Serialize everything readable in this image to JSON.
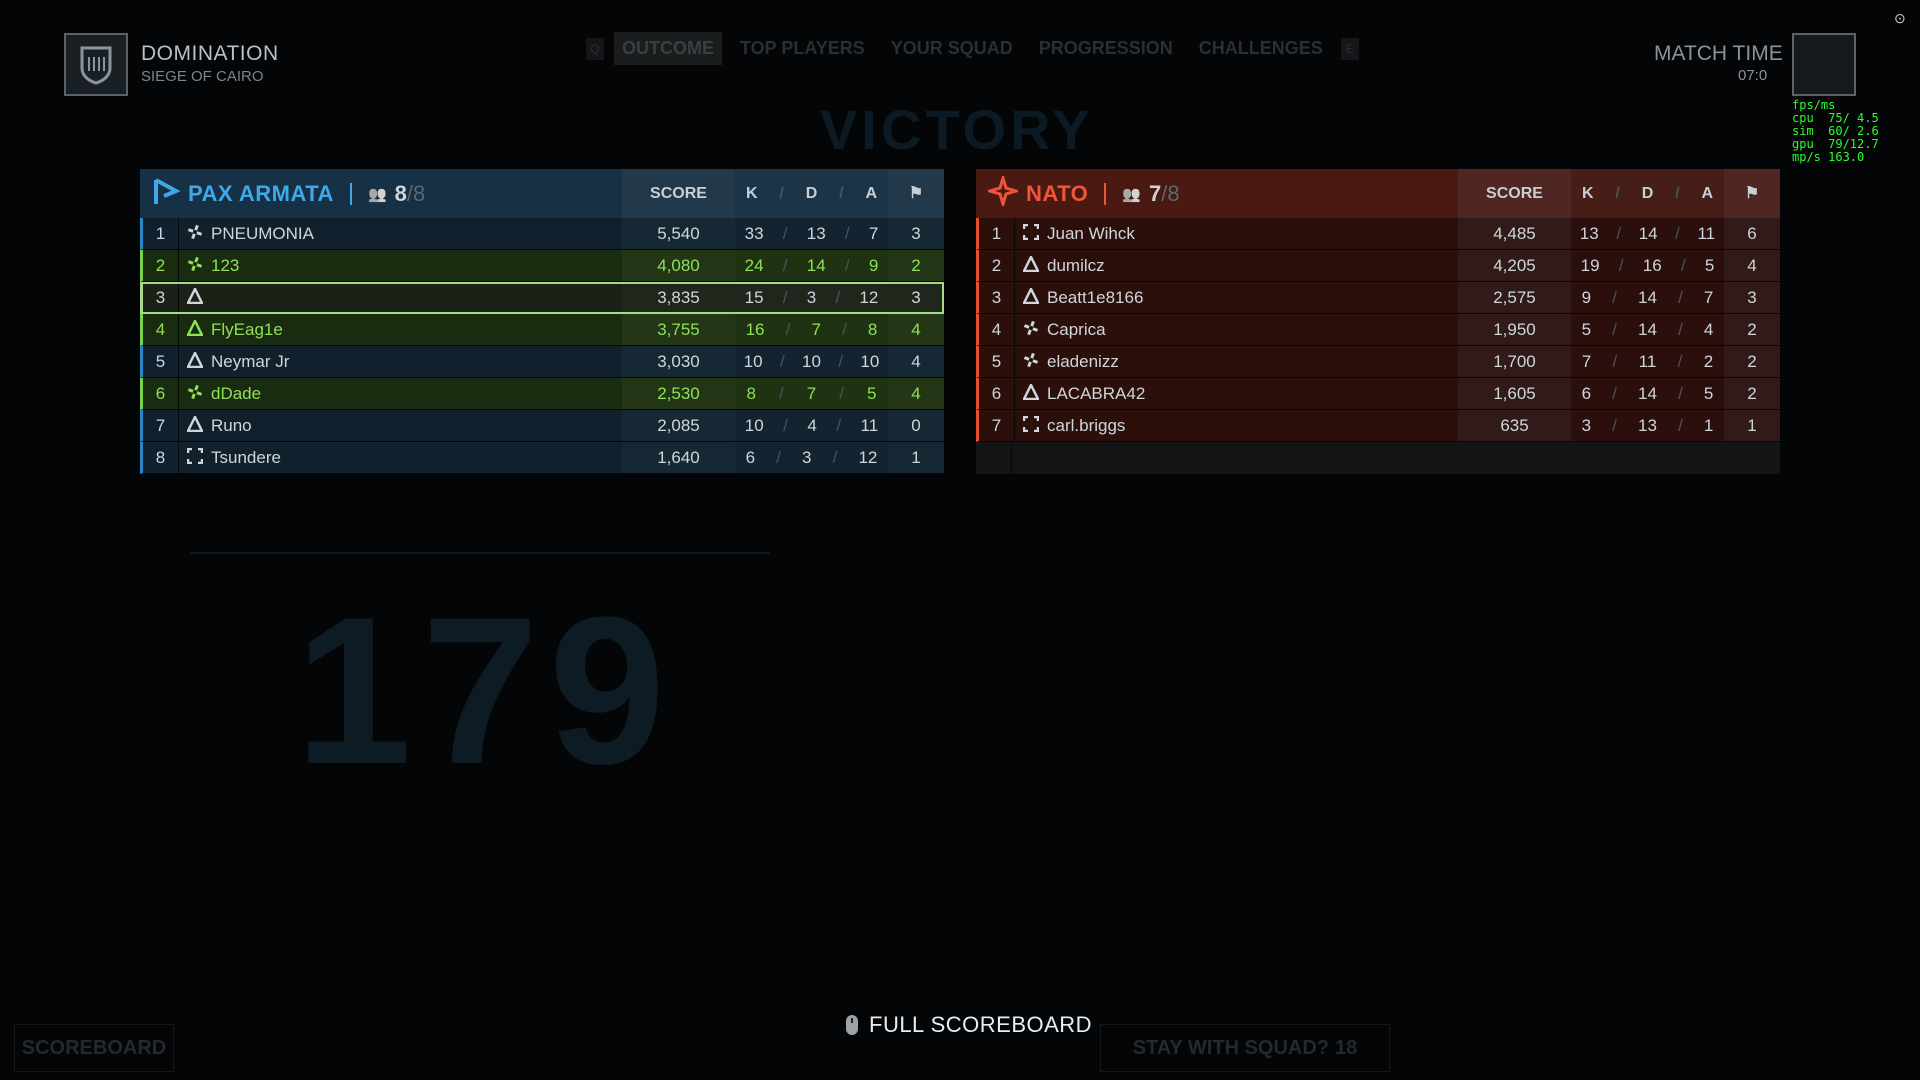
{
  "header": {
    "mode": "DOMINATION",
    "map": "SIEGE OF CAIRO",
    "tabs": [
      "OUTCOME",
      "TOP PLAYERS",
      "YOUR SQUAD",
      "PROGRESSION",
      "CHALLENGES"
    ],
    "active_tab": "OUTCOME",
    "key_left": "Q",
    "key_right": "E",
    "match_time_label": "MATCH TIME",
    "match_time_value": "07:0"
  },
  "perf_overlay": "fps/ms\ncpu  75/ 4.5\nsim  60/ 2.6\ngpu  79/12.7\nmp/s 163.0",
  "background": {
    "result": "VICTORY",
    "score": "179"
  },
  "columns": {
    "score": "SCORE",
    "k": "K",
    "d": "D",
    "a": "A",
    "slash": "/"
  },
  "teams": [
    {
      "name": "PAX ARMATA",
      "players": "8",
      "max": "8",
      "color": "#3fa9e8",
      "rows": [
        {
          "rank": "1",
          "class": "support",
          "name": "PNEUMONIA",
          "score": "5,540",
          "k": "33",
          "d": "13",
          "a": "7",
          "flags": "3",
          "state": "normal"
        },
        {
          "rank": "2",
          "class": "support",
          "name": "123",
          "score": "4,080",
          "k": "24",
          "d": "14",
          "a": "9",
          "flags": "2",
          "state": "squad"
        },
        {
          "rank": "3",
          "class": "assault",
          "name": "",
          "score": "3,835",
          "k": "15",
          "d": "3",
          "a": "12",
          "flags": "3",
          "state": "me"
        },
        {
          "rank": "4",
          "class": "assault",
          "name": "FlyEag1e",
          "score": "3,755",
          "k": "16",
          "d": "7",
          "a": "8",
          "flags": "4",
          "state": "squad"
        },
        {
          "rank": "5",
          "class": "assault",
          "name": "Neymar Jr",
          "score": "3,030",
          "k": "10",
          "d": "10",
          "a": "10",
          "flags": "4",
          "state": "normal"
        },
        {
          "rank": "6",
          "class": "support",
          "name": "dDade",
          "score": "2,530",
          "k": "8",
          "d": "7",
          "a": "5",
          "flags": "4",
          "state": "squad"
        },
        {
          "rank": "7",
          "class": "assault",
          "name": "Runo",
          "score": "2,085",
          "k": "10",
          "d": "4",
          "a": "11",
          "flags": "0",
          "state": "normal"
        },
        {
          "rank": "8",
          "class": "recon",
          "name": "Tsundere",
          "score": "1,640",
          "k": "6",
          "d": "3",
          "a": "12",
          "flags": "1",
          "state": "normal"
        }
      ]
    },
    {
      "name": "NATO",
      "players": "7",
      "max": "8",
      "color": "#f0553a",
      "rows": [
        {
          "rank": "1",
          "class": "recon",
          "name": "Juan Wihck",
          "score": "4,485",
          "k": "13",
          "d": "14",
          "a": "11",
          "flags": "6"
        },
        {
          "rank": "2",
          "class": "assault",
          "name": "dumilcz",
          "score": "4,205",
          "k": "19",
          "d": "16",
          "a": "5",
          "flags": "4"
        },
        {
          "rank": "3",
          "class": "assault",
          "name": "Beatt1e8166",
          "score": "2,575",
          "k": "9",
          "d": "14",
          "a": "7",
          "flags": "3"
        },
        {
          "rank": "4",
          "class": "support",
          "name": "Caprica",
          "score": "1,950",
          "k": "5",
          "d": "14",
          "a": "4",
          "flags": "2"
        },
        {
          "rank": "5",
          "class": "support",
          "name": "eladenizz",
          "score": "1,700",
          "k": "7",
          "d": "11",
          "a": "2",
          "flags": "2"
        },
        {
          "rank": "6",
          "class": "assault",
          "name": "LACABRA42",
          "score": "1,605",
          "k": "6",
          "d": "14",
          "a": "5",
          "flags": "2"
        },
        {
          "rank": "7",
          "class": "recon",
          "name": "carl.briggs",
          "score": "635",
          "k": "3",
          "d": "13",
          "a": "1",
          "flags": "1"
        }
      ]
    }
  ],
  "footer": {
    "full_scoreboard": "FULL SCOREBOARD",
    "scoreboard": "SCOREBOARD",
    "stay_with_squad": "STAY WITH SQUAD?",
    "countdown": "18"
  }
}
